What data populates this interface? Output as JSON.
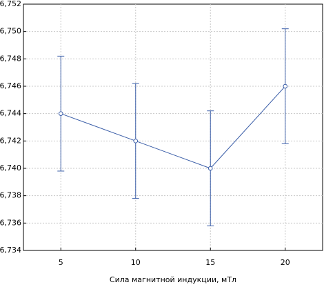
{
  "chart_data": {
    "type": "line",
    "x_label": "Сила магнитной индукции, мТл",
    "x": [
      5,
      10,
      15,
      20
    ],
    "series": [
      {
        "color": "#3b5ea8",
        "values": [
          6.744,
          6.742,
          6.74,
          6.746
        ],
        "errors": [
          0.0042,
          0.0042,
          0.0042,
          0.0042
        ]
      }
    ],
    "xlim": [
      2.5,
      22.5
    ],
    "xticks": [
      5,
      10,
      15,
      20
    ],
    "ylim": [
      6.734,
      6.752
    ],
    "yticks": [
      {
        "value": 6.734,
        "label": "6,734"
      },
      {
        "value": 6.736,
        "label": "6,736"
      },
      {
        "value": 6.738,
        "label": "6,738"
      },
      {
        "value": 6.74,
        "label": "6,740"
      },
      {
        "value": 6.742,
        "label": "6,742"
      },
      {
        "value": 6.744,
        "label": "6,744"
      },
      {
        "value": 6.746,
        "label": "6,746"
      },
      {
        "value": 6.748,
        "label": "6,748"
      },
      {
        "value": 6.75,
        "label": "6,750"
      },
      {
        "value": 6.752,
        "label": "6,752"
      }
    ],
    "grid": true
  }
}
